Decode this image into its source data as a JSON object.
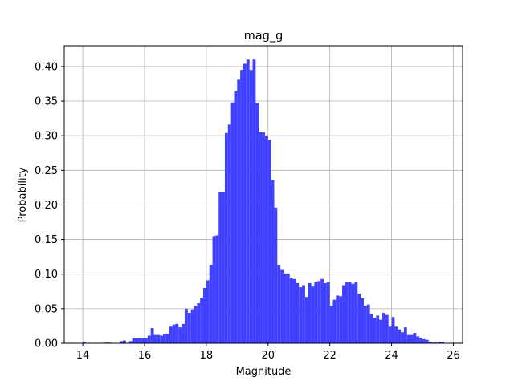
{
  "chart_data": {
    "type": "bar",
    "title": "mag_g",
    "xlabel": "Magnitude",
    "ylabel": "Probability",
    "xlim": [
      13.4,
      26.3
    ],
    "ylim": [
      0.0,
      0.43
    ],
    "xticks": [
      14,
      16,
      18,
      20,
      22,
      24,
      26
    ],
    "xtick_labels": [
      "14",
      "16",
      "18",
      "20",
      "22",
      "24",
      "26"
    ],
    "yticks": [
      0.0,
      0.05,
      0.1,
      0.15,
      0.2,
      0.25,
      0.3,
      0.35,
      0.4
    ],
    "ytick_labels": [
      "0.00",
      "0.05",
      "0.10",
      "0.15",
      "0.20",
      "0.25",
      "0.30",
      "0.35",
      "0.40"
    ],
    "grid": true,
    "bar_color": "#4040ff",
    "bin_width": 0.1,
    "bins": [
      {
        "x": 14.0,
        "y": 0.002
      },
      {
        "x": 14.7,
        "y": 0.001
      },
      {
        "x": 14.8,
        "y": 0.001
      },
      {
        "x": 15.2,
        "y": 0.003
      },
      {
        "x": 15.3,
        "y": 0.004
      },
      {
        "x": 15.5,
        "y": 0.003
      },
      {
        "x": 15.6,
        "y": 0.007
      },
      {
        "x": 15.7,
        "y": 0.007
      },
      {
        "x": 15.8,
        "y": 0.007
      },
      {
        "x": 15.9,
        "y": 0.007
      },
      {
        "x": 16.0,
        "y": 0.007
      },
      {
        "x": 16.1,
        "y": 0.011
      },
      {
        "x": 16.2,
        "y": 0.022
      },
      {
        "x": 16.3,
        "y": 0.012
      },
      {
        "x": 16.4,
        "y": 0.012
      },
      {
        "x": 16.5,
        "y": 0.011
      },
      {
        "x": 16.6,
        "y": 0.014
      },
      {
        "x": 16.7,
        "y": 0.014
      },
      {
        "x": 16.8,
        "y": 0.024
      },
      {
        "x": 16.9,
        "y": 0.027
      },
      {
        "x": 17.0,
        "y": 0.028
      },
      {
        "x": 17.1,
        "y": 0.023
      },
      {
        "x": 17.2,
        "y": 0.028
      },
      {
        "x": 17.3,
        "y": 0.05
      },
      {
        "x": 17.4,
        "y": 0.044
      },
      {
        "x": 17.5,
        "y": 0.049
      },
      {
        "x": 17.6,
        "y": 0.054
      },
      {
        "x": 17.7,
        "y": 0.058
      },
      {
        "x": 17.8,
        "y": 0.066
      },
      {
        "x": 17.9,
        "y": 0.08
      },
      {
        "x": 18.0,
        "y": 0.091
      },
      {
        "x": 18.1,
        "y": 0.113
      },
      {
        "x": 18.2,
        "y": 0.155
      },
      {
        "x": 18.3,
        "y": 0.156
      },
      {
        "x": 18.4,
        "y": 0.218
      },
      {
        "x": 18.5,
        "y": 0.219
      },
      {
        "x": 18.6,
        "y": 0.304
      },
      {
        "x": 18.7,
        "y": 0.316
      },
      {
        "x": 18.8,
        "y": 0.348
      },
      {
        "x": 18.9,
        "y": 0.364
      },
      {
        "x": 19.0,
        "y": 0.381
      },
      {
        "x": 19.1,
        "y": 0.395
      },
      {
        "x": 19.2,
        "y": 0.404
      },
      {
        "x": 19.3,
        "y": 0.41
      },
      {
        "x": 19.4,
        "y": 0.395
      },
      {
        "x": 19.5,
        "y": 0.41
      },
      {
        "x": 19.6,
        "y": 0.347
      },
      {
        "x": 19.7,
        "y": 0.306
      },
      {
        "x": 19.8,
        "y": 0.305
      },
      {
        "x": 19.9,
        "y": 0.299
      },
      {
        "x": 20.0,
        "y": 0.294
      },
      {
        "x": 20.1,
        "y": 0.236
      },
      {
        "x": 20.2,
        "y": 0.196
      },
      {
        "x": 20.3,
        "y": 0.113
      },
      {
        "x": 20.4,
        "y": 0.106
      },
      {
        "x": 20.5,
        "y": 0.101
      },
      {
        "x": 20.6,
        "y": 0.101
      },
      {
        "x": 20.7,
        "y": 0.095
      },
      {
        "x": 20.8,
        "y": 0.093
      },
      {
        "x": 20.9,
        "y": 0.087
      },
      {
        "x": 21.0,
        "y": 0.081
      },
      {
        "x": 21.1,
        "y": 0.084
      },
      {
        "x": 21.2,
        "y": 0.067
      },
      {
        "x": 21.3,
        "y": 0.087
      },
      {
        "x": 21.4,
        "y": 0.082
      },
      {
        "x": 21.5,
        "y": 0.089
      },
      {
        "x": 21.6,
        "y": 0.09
      },
      {
        "x": 21.7,
        "y": 0.093
      },
      {
        "x": 21.8,
        "y": 0.087
      },
      {
        "x": 21.9,
        "y": 0.088
      },
      {
        "x": 22.0,
        "y": 0.054
      },
      {
        "x": 22.1,
        "y": 0.063
      },
      {
        "x": 22.2,
        "y": 0.069
      },
      {
        "x": 22.3,
        "y": 0.068
      },
      {
        "x": 22.4,
        "y": 0.084
      },
      {
        "x": 22.5,
        "y": 0.088
      },
      {
        "x": 22.6,
        "y": 0.088
      },
      {
        "x": 22.7,
        "y": 0.086
      },
      {
        "x": 22.8,
        "y": 0.088
      },
      {
        "x": 22.9,
        "y": 0.072
      },
      {
        "x": 23.0,
        "y": 0.065
      },
      {
        "x": 23.1,
        "y": 0.054
      },
      {
        "x": 23.2,
        "y": 0.056
      },
      {
        "x": 23.3,
        "y": 0.042
      },
      {
        "x": 23.4,
        "y": 0.037
      },
      {
        "x": 23.5,
        "y": 0.04
      },
      {
        "x": 23.6,
        "y": 0.034
      },
      {
        "x": 23.7,
        "y": 0.044
      },
      {
        "x": 23.8,
        "y": 0.041
      },
      {
        "x": 23.9,
        "y": 0.024
      },
      {
        "x": 24.0,
        "y": 0.038
      },
      {
        "x": 24.1,
        "y": 0.024
      },
      {
        "x": 24.2,
        "y": 0.02
      },
      {
        "x": 24.3,
        "y": 0.016
      },
      {
        "x": 24.4,
        "y": 0.023
      },
      {
        "x": 24.5,
        "y": 0.012
      },
      {
        "x": 24.6,
        "y": 0.012
      },
      {
        "x": 24.7,
        "y": 0.015
      },
      {
        "x": 24.8,
        "y": 0.01
      },
      {
        "x": 24.9,
        "y": 0.008
      },
      {
        "x": 25.0,
        "y": 0.006
      },
      {
        "x": 25.1,
        "y": 0.005
      },
      {
        "x": 25.2,
        "y": 0.002
      },
      {
        "x": 25.3,
        "y": 0.001
      },
      {
        "x": 25.4,
        "y": 0.001
      },
      {
        "x": 25.5,
        "y": 0.002
      },
      {
        "x": 25.6,
        "y": 0.002
      }
    ]
  }
}
